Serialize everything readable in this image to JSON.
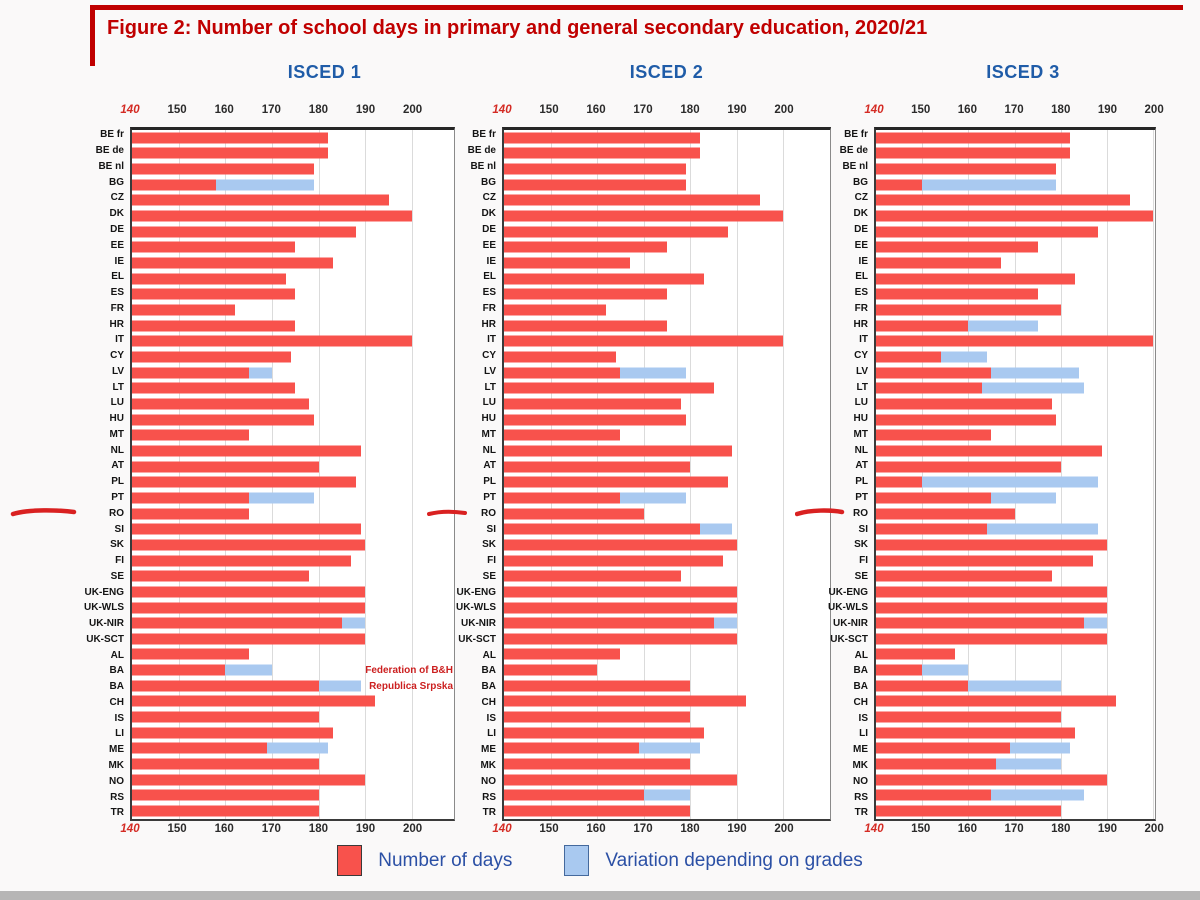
{
  "title": "Figure 2: Number of school days in primary and general secondary education, 2020/21",
  "legend": {
    "items": [
      {
        "label": "Number of days",
        "color": "#F8524C"
      },
      {
        "label": "Variation depending on grades",
        "color": "#A9C9F0"
      }
    ]
  },
  "annotations": {
    "federation_label": "Federation of B&H",
    "republica_label": "Republica Srpska"
  },
  "colors": {
    "title_red": "#C00000",
    "bar_red": "#F8524C",
    "bar_blue": "#A9C9F0",
    "header_blue": "#1F5CA8",
    "legend_text_blue": "#2B50A5",
    "tick_140_red": "#D42B24",
    "annotation_red": "#D92121"
  },
  "chart_data": {
    "type": "bar",
    "orientation": "horizontal",
    "title": "Figure 2: Number of school days in primary and general secondary education, 2020/21",
    "x_ticks": [
      140,
      150,
      160,
      170,
      180,
      190,
      200
    ],
    "xlim": [
      140,
      200
    ],
    "grid": true,
    "legend_position": "bottom",
    "series_legend": [
      "Number of days",
      "Variation depending on grades"
    ],
    "categories": [
      "BE fr",
      "BE de",
      "BE nl",
      "BG",
      "CZ",
      "DK",
      "DE",
      "EE",
      "IE",
      "EL",
      "ES",
      "FR",
      "HR",
      "IT",
      "CY",
      "LV",
      "LT",
      "LU",
      "HU",
      "MT",
      "NL",
      "AT",
      "PL",
      "PT",
      "RO",
      "SI",
      "SK",
      "FI",
      "SE",
      "UK-ENG",
      "UK-WLS",
      "UK-NIR",
      "UK-SCT",
      "AL",
      "BA",
      "BA",
      "CH",
      "IS",
      "LI",
      "ME",
      "MK",
      "NO",
      "RS",
      "TR"
    ],
    "panels": [
      {
        "name": "ISCED 1",
        "days": [
          182,
          182,
          179,
          158,
          195,
          200,
          188,
          175,
          183,
          173,
          175,
          162,
          175,
          200,
          174,
          165,
          175,
          178,
          179,
          165,
          189,
          180,
          188,
          165,
          165,
          189,
          190,
          187,
          178,
          190,
          190,
          185,
          190,
          165,
          160,
          180,
          192,
          180,
          183,
          169,
          180,
          190,
          180,
          180
        ],
        "variation_to": [
          null,
          null,
          null,
          179,
          null,
          null,
          null,
          null,
          null,
          null,
          null,
          null,
          null,
          null,
          null,
          170,
          null,
          null,
          null,
          null,
          null,
          null,
          null,
          179,
          null,
          null,
          null,
          null,
          null,
          null,
          null,
          190,
          null,
          null,
          170,
          189,
          null,
          null,
          null,
          182,
          null,
          null,
          null,
          null
        ]
      },
      {
        "name": "ISCED 2",
        "days": [
          182,
          182,
          179,
          179,
          195,
          200,
          188,
          175,
          167,
          183,
          175,
          162,
          175,
          200,
          164,
          165,
          185,
          178,
          179,
          165,
          189,
          180,
          188,
          165,
          170,
          182,
          190,
          187,
          178,
          190,
          190,
          185,
          190,
          165,
          160,
          180,
          192,
          180,
          183,
          169,
          180,
          190,
          170,
          180
        ],
        "variation_to": [
          null,
          null,
          null,
          null,
          null,
          null,
          null,
          null,
          null,
          null,
          null,
          null,
          null,
          null,
          null,
          179,
          null,
          null,
          null,
          null,
          null,
          null,
          null,
          179,
          null,
          189,
          null,
          null,
          null,
          null,
          null,
          190,
          null,
          null,
          null,
          null,
          null,
          null,
          null,
          182,
          null,
          null,
          180,
          null
        ]
      },
      {
        "name": "ISCED 3",
        "days": [
          182,
          182,
          179,
          150,
          195,
          200,
          188,
          175,
          167,
          183,
          175,
          180,
          160,
          200,
          154,
          165,
          163,
          178,
          179,
          165,
          189,
          180,
          150,
          165,
          170,
          164,
          190,
          187,
          178,
          190,
          190,
          185,
          190,
          157,
          150,
          160,
          192,
          180,
          183,
          169,
          166,
          190,
          165,
          180
        ],
        "variation_to": [
          null,
          null,
          null,
          179,
          null,
          null,
          null,
          null,
          null,
          null,
          null,
          null,
          175,
          null,
          164,
          184,
          185,
          null,
          null,
          null,
          null,
          null,
          188,
          179,
          null,
          188,
          null,
          null,
          null,
          null,
          null,
          190,
          null,
          null,
          160,
          180,
          null,
          null,
          null,
          182,
          180,
          null,
          185,
          null
        ]
      }
    ]
  }
}
